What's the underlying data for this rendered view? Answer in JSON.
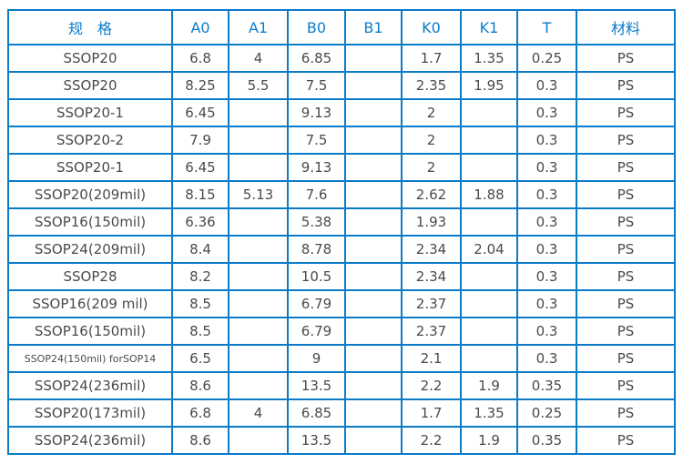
{
  "table": {
    "headers": [
      "规　格",
      "A0",
      "A1",
      "B0",
      "B1",
      "K0",
      "K1",
      "T",
      "材料"
    ],
    "rows": [
      [
        "SSOP20",
        "6.8",
        "4",
        "6.85",
        "",
        "1.7",
        "1.35",
        "0.25",
        "PS"
      ],
      [
        "SSOP20",
        "8.25",
        "5.5",
        "7.5",
        "",
        "2.35",
        "1.95",
        "0.3",
        "PS"
      ],
      [
        "SSOP20-1",
        "6.45",
        "",
        "9.13",
        "",
        "2",
        "",
        "0.3",
        "PS"
      ],
      [
        "SSOP20-2",
        "7.9",
        "",
        "7.5",
        "",
        "2",
        "",
        "0.3",
        "PS"
      ],
      [
        "SSOP20-1",
        "6.45",
        "",
        "9.13",
        "",
        "2",
        "",
        "0.3",
        "PS"
      ],
      [
        "SSOP20(209mil)",
        "8.15",
        "5.13",
        "7.6",
        "",
        "2.62",
        "1.88",
        "0.3",
        "PS"
      ],
      [
        "SSOP16(150mil)",
        "6.36",
        "",
        "5.38",
        "",
        "1.93",
        "",
        "0.3",
        "PS"
      ],
      [
        "SSOP24(209mil)",
        "8.4",
        "",
        "8.78",
        "",
        "2.34",
        "2.04",
        "0.3",
        "PS"
      ],
      [
        "SSOP28",
        "8.2",
        "",
        "10.5",
        "",
        "2.34",
        "",
        "0.3",
        "PS"
      ],
      [
        "SSOP16(209 mil)",
        "8.5",
        "",
        "6.79",
        "",
        "2.37",
        "",
        "0.3",
        "PS"
      ],
      [
        "SSOP16(150mil)",
        "8.5",
        "",
        "6.79",
        "",
        "2.37",
        "",
        "0.3",
        "PS"
      ],
      [
        "SSOP24(150mil) forSOP14",
        "6.5",
        "",
        "9",
        "",
        "2.1",
        "",
        "0.3",
        "PS"
      ],
      [
        "SSOP24(236mil)",
        "8.6",
        "",
        "13.5",
        "",
        "2.2",
        "1.9",
        "0.35",
        "PS"
      ],
      [
        "SSOP20(173mil)",
        "6.8",
        "4",
        "6.85",
        "",
        "1.7",
        "1.35",
        "0.25",
        "PS"
      ],
      [
        "SSOP24(236mil)",
        "8.6",
        "",
        "13.5",
        "",
        "2.2",
        "1.9",
        "0.35",
        "PS"
      ]
    ]
  },
  "colors": {
    "border": "#0a7bc9",
    "header_text": "#0a7bc9",
    "cell_text": "#4a4a4a"
  }
}
